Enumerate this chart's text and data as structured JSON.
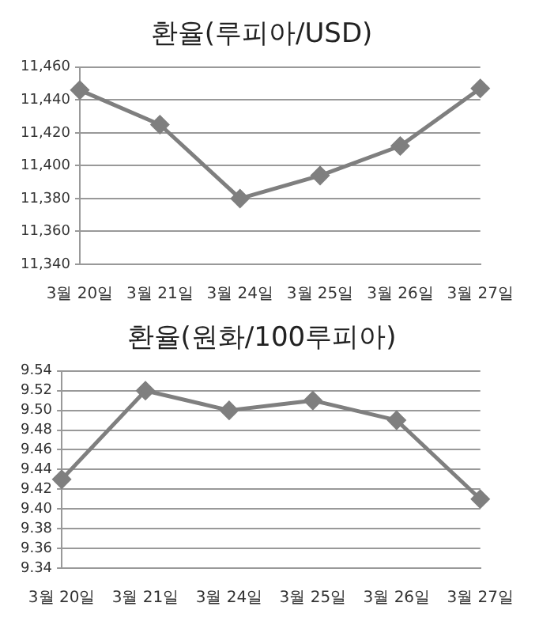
{
  "chart_data": [
    {
      "type": "line",
      "title": "환율(루피아/USD)",
      "categories": [
        "3월 20일",
        "3월 21일",
        "3월 24일",
        "3월 25일",
        "3월 26일",
        "3월 27일"
      ],
      "series": [
        {
          "color": "#7f7f7f",
          "values": [
            11446,
            11425,
            11380,
            11394,
            11412,
            11447
          ]
        }
      ],
      "ylim": [
        11340,
        11460
      ],
      "yticks": [
        {
          "value": 11340,
          "label": "11,340"
        },
        {
          "value": 11360,
          "label": "11,360"
        },
        {
          "value": 11380,
          "label": "11,380"
        },
        {
          "value": 11400,
          "label": "11,400"
        },
        {
          "value": 11420,
          "label": "11,420"
        },
        {
          "value": 11440,
          "label": "11,440"
        },
        {
          "value": 11460,
          "label": "11,460"
        }
      ],
      "grid": "y",
      "legend": false,
      "marker": "diamond",
      "line_style": "solid"
    },
    {
      "type": "line",
      "title": "환율(원화/100루피아)",
      "categories": [
        "3월 20일",
        "3월 21일",
        "3월 24일",
        "3월 25일",
        "3월 26일",
        "3월 27일"
      ],
      "series": [
        {
          "color": "#7f7f7f",
          "values": [
            9.43,
            9.52,
            9.5,
            9.51,
            9.49,
            9.41
          ]
        }
      ],
      "ylim": [
        9.34,
        9.54
      ],
      "yticks": [
        {
          "value": 9.34,
          "label": "9.34"
        },
        {
          "value": 9.36,
          "label": "9.36"
        },
        {
          "value": 9.38,
          "label": "9.38"
        },
        {
          "value": 9.4,
          "label": "9.40"
        },
        {
          "value": 9.42,
          "label": "9.42"
        },
        {
          "value": 9.44,
          "label": "9.44"
        },
        {
          "value": 9.46,
          "label": "9.46"
        },
        {
          "value": 9.48,
          "label": "9.48"
        },
        {
          "value": 9.5,
          "label": "9.50"
        },
        {
          "value": 9.52,
          "label": "9.52"
        },
        {
          "value": 9.54,
          "label": "9.54"
        }
      ],
      "grid": "y",
      "legend": false,
      "marker": "diamond",
      "line_style": "solid"
    }
  ]
}
